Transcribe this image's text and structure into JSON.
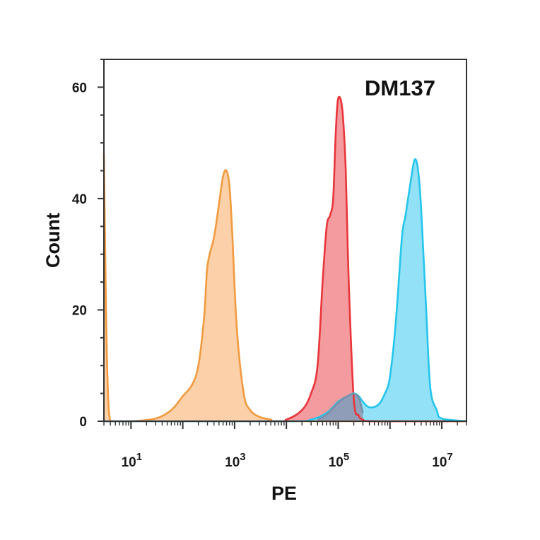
{
  "chart_data": {
    "type": "area",
    "title": "DM137",
    "xlabel": "PE",
    "ylabel": "Count",
    "x_scale": "log",
    "xlim": [
      3,
      30000000
    ],
    "ylim": [
      0,
      65
    ],
    "x_tick_labels": [
      {
        "base": "10",
        "exp": "1",
        "value": 10
      },
      {
        "base": "10",
        "exp": "3",
        "value": 1000
      },
      {
        "base": "10",
        "exp": "5",
        "value": 100000
      },
      {
        "base": "10",
        "exp": "7",
        "value": 10000000
      }
    ],
    "y_ticks": [
      {
        "label": "0",
        "value": 0
      },
      {
        "label": "20",
        "value": 20
      },
      {
        "label": "40",
        "value": 40
      },
      {
        "label": "60",
        "value": 60
      }
    ],
    "series": [
      {
        "color": "#f29a3f",
        "fill": "#fbc99a",
        "x": [
          3,
          3.3,
          3.6,
          4,
          5,
          10,
          30,
          60,
          100,
          150,
          200,
          260,
          300,
          400,
          500,
          600,
          700,
          800,
          900,
          1100,
          1500,
          2000,
          3000,
          5000,
          10000,
          30000000
        ],
        "y": [
          48,
          20,
          5,
          0,
          0,
          0,
          0.5,
          2,
          4.5,
          6.5,
          10,
          19,
          28,
          33,
          39,
          44,
          45,
          42,
          34,
          17,
          5,
          2,
          0.8,
          0.3,
          0,
          0
        ]
      },
      {
        "color": "#e8363a",
        "fill": "#f28a8e",
        "x": [
          3,
          5000,
          10000,
          20000,
          30000,
          40000,
          50000,
          60000,
          70000,
          80000,
          90000,
          100000,
          120000,
          140000,
          160000,
          200000,
          250000,
          300000,
          500000,
          30000000
        ],
        "y": [
          0,
          0,
          0.3,
          2,
          5,
          10,
          25,
          35,
          37,
          40,
          52,
          58,
          56,
          45,
          25,
          4,
          1,
          0.3,
          0,
          0
        ]
      },
      {
        "color": "#25c5ec",
        "fill": "#7fdcf4",
        "x": [
          3,
          10000,
          30000,
          60000,
          100000,
          150000,
          200000,
          250000,
          300000,
          400000,
          600000,
          800000,
          1000000,
          1300000,
          1700000,
          2000000,
          2500000,
          3000000,
          3500000,
          4000000,
          5000000,
          6000000,
          8000000,
          10000000,
          30000000
        ],
        "y": [
          0,
          0,
          0.3,
          1.5,
          3.5,
          4.5,
          5,
          4.5,
          3.5,
          2.5,
          3,
          5,
          8,
          18,
          33,
          37,
          43,
          47,
          45,
          38,
          20,
          6,
          2,
          0.5,
          0
        ]
      },
      {
        "color": "#7a8fa8",
        "fill": "#8e94b0",
        "x": [
          40000,
          60000,
          80000,
          100000,
          120000,
          150000,
          200000,
          250000,
          300000
        ],
        "y": [
          0.3,
          1.2,
          2.4,
          3.3,
          3.9,
          4.5,
          4.9,
          4.2,
          1.5
        ]
      }
    ]
  }
}
